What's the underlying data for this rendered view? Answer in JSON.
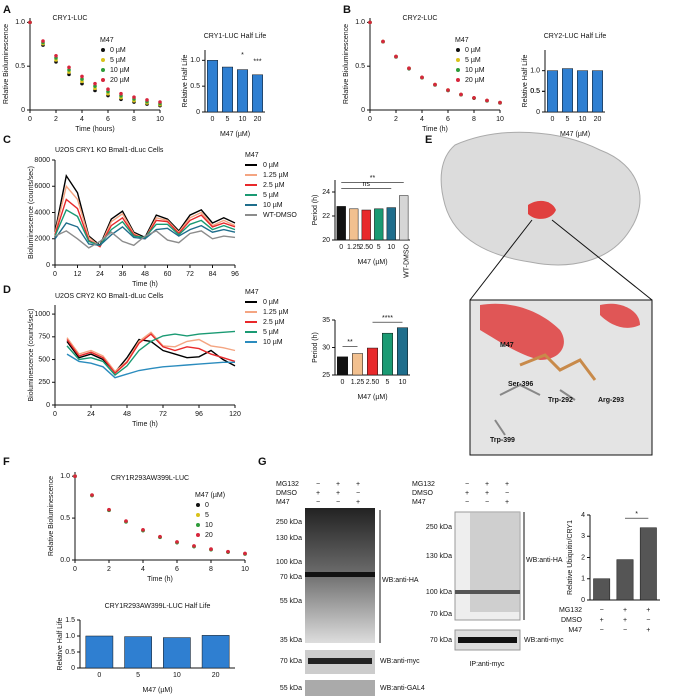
{
  "panel_labels": [
    "A",
    "B",
    "C",
    "D",
    "E",
    "F",
    "G"
  ],
  "chart_data": [
    {
      "type": "line",
      "title": "CRY1-LUC",
      "xlabel": "Time (hours)",
      "ylabel": "Relative Bioluminescence",
      "legend_title": "M47",
      "markers": true,
      "x": [
        0,
        1,
        2,
        3,
        4,
        5,
        6,
        7,
        8,
        9,
        10
      ],
      "xlim": [
        0,
        10
      ],
      "xticks": [
        0,
        2,
        4,
        6,
        8,
        10
      ],
      "ylim": [
        0,
        1.05
      ],
      "yticks": [
        0,
        0.5,
        {
          "value": 1,
          "label": "1.0"
        }
      ],
      "series": [
        {
          "name": "0 µM",
          "color": "#111111",
          "values": [
            1,
            0.741,
            0.549,
            0.407,
            0.301,
            0.223,
            0.165,
            0.122,
            0.091,
            0.067,
            0.05
          ]
        },
        {
          "name": "5 µM",
          "color": "#d9c21a",
          "values": [
            1,
            0.756,
            0.571,
            0.432,
            0.326,
            0.247,
            0.186,
            0.141,
            0.106,
            0.08,
            0.061
          ]
        },
        {
          "name": "10 µM",
          "color": "#2e9b3a",
          "values": [
            1,
            0.771,
            0.595,
            0.458,
            0.353,
            0.273,
            0.21,
            0.162,
            0.125,
            0.096,
            0.074
          ]
        },
        {
          "name": "20 µM",
          "color": "#d7263d",
          "values": [
            1,
            0.787,
            0.619,
            0.487,
            0.383,
            0.301,
            0.237,
            0.186,
            0.147,
            0.115,
            0.091
          ]
        }
      ]
    },
    {
      "type": "bar",
      "title": "CRY1-LUC Half Life",
      "xlabel": "M47 (µM)",
      "ylabel": "Relative Half Life",
      "categories": [
        "0",
        "5",
        "10",
        "20"
      ],
      "values": [
        1.0,
        0.87,
        0.82,
        0.72
      ],
      "color": "#2f7fd1",
      "ylim": [
        0,
        1.2
      ],
      "yticks": [
        0,
        0.5,
        {
          "value": 1,
          "label": "1.0"
        }
      ],
      "annotations": [
        "*",
        "***"
      ]
    },
    {
      "type": "line",
      "title": "CRY2-LUC",
      "xlabel": "Time (h)",
      "ylabel": "Relative Bioluminescence",
      "legend_title": "M47",
      "markers": true,
      "x": [
        0,
        1,
        2,
        3,
        4,
        5,
        6,
        7,
        8,
        9,
        10
      ],
      "xlim": [
        0,
        10
      ],
      "xticks": [
        0,
        2,
        4,
        6,
        8,
        10
      ],
      "ylim": [
        0,
        1.05
      ],
      "yticks": [
        0,
        0.5,
        {
          "value": 1,
          "label": "1.0"
        }
      ],
      "series": [
        {
          "name": "0 µM",
          "color": "#111111",
          "values": [
            1,
            0.779,
            0.607,
            0.472,
            0.368,
            0.287,
            0.223,
            0.174,
            0.135,
            0.105,
            0.082
          ]
        },
        {
          "name": "5 µM",
          "color": "#d9c21a",
          "values": [
            1,
            0.781,
            0.61,
            0.476,
            0.372,
            0.29,
            0.227,
            0.177,
            0.138,
            0.108,
            0.084
          ]
        },
        {
          "name": "10 µM",
          "color": "#2e9b3a",
          "values": [
            1,
            0.78,
            0.608,
            0.474,
            0.37,
            0.288,
            0.225,
            0.175,
            0.137,
            0.106,
            0.083
          ]
        },
        {
          "name": "20 µM",
          "color": "#d7263d",
          "values": [
            1,
            0.782,
            0.611,
            0.477,
            0.373,
            0.291,
            0.228,
            0.178,
            0.139,
            0.109,
            0.085
          ]
        }
      ]
    },
    {
      "type": "bar",
      "title": "CRY2-LUC Half Life",
      "xlabel": "M47 (µM)",
      "ylabel": "Relative Half Life",
      "categories": [
        "0",
        "5",
        "10",
        "20"
      ],
      "values": [
        1.0,
        1.05,
        1.0,
        1.0
      ],
      "color": "#2f7fd1",
      "ylim": [
        0,
        1.5
      ],
      "yticks": [
        0,
        0.5,
        {
          "value": 1,
          "label": "1.0"
        },
        0.5
      ]
    },
    {
      "type": "line",
      "title": "U2OS CRY1 KO Bmal1-dLuc Cells",
      "xlabel": "Time (h)",
      "ylabel": "Bioluminescence (counts/sec)",
      "legend_title": "M47",
      "markers": false,
      "x": [
        0,
        6,
        12,
        18,
        24,
        30,
        36,
        42,
        48,
        54,
        60,
        66,
        72,
        78,
        84,
        90,
        96
      ],
      "xlim": [
        0,
        96
      ],
      "xticks": [
        0,
        12,
        24,
        36,
        48,
        60,
        72,
        84,
        96
      ],
      "ylim": [
        0,
        8000
      ],
      "yticks": [
        0,
        2000,
        4000,
        6000,
        8000
      ],
      "series": [
        {
          "name": "0 µM",
          "color": "#000000",
          "values": [
            2500,
            6800,
            5500,
            2200,
            1500,
            3500,
            4100,
            2500,
            2100,
            3800,
            3500,
            2600,
            3800,
            4200,
            3200,
            3600,
            3200
          ]
        },
        {
          "name": "1.25 µM",
          "color": "#f4a582",
          "values": [
            2400,
            6000,
            5000,
            2100,
            1400,
            3300,
            3900,
            2400,
            2000,
            3600,
            3400,
            2500,
            3600,
            4000,
            3000,
            3400,
            3000
          ]
        },
        {
          "name": "2.5 µM",
          "color": "#e8292b",
          "values": [
            2300,
            5000,
            4300,
            1900,
            1400,
            3000,
            3600,
            2300,
            2000,
            3400,
            3300,
            2400,
            3400,
            3800,
            2900,
            3200,
            2900
          ]
        },
        {
          "name": "5 µM",
          "color": "#1a9a73",
          "values": [
            2200,
            4200,
            3700,
            1800,
            1500,
            2700,
            3300,
            2200,
            2100,
            3100,
            3100,
            2300,
            3100,
            3400,
            2700,
            3000,
            2700
          ]
        },
        {
          "name": "10 µM",
          "color": "#1f6e8c",
          "values": [
            2000,
            3200,
            2900,
            1600,
            1500,
            2300,
            2900,
            2100,
            2000,
            2700,
            2800,
            2200,
            2700,
            3000,
            2500,
            2700,
            2500
          ]
        },
        {
          "name": "WT-DMSO",
          "color": "#8c8c8c",
          "values": [
            2200,
            2600,
            2000,
            1300,
            1800,
            2500,
            1800,
            1500,
            2200,
            2600,
            1900,
            1700,
            2400,
            2600,
            2000,
            2200,
            2100
          ]
        }
      ]
    },
    {
      "type": "bar",
      "xlabel": "M47 (µM)",
      "ylabel": "Period (h)",
      "categories": [
        "0",
        "1.25",
        "2.50",
        "5",
        "10",
        "WT-DMSO"
      ],
      "values": [
        22.8,
        22.6,
        22.5,
        22.6,
        22.7,
        23.7
      ],
      "colors": [
        "#111111",
        "#f2c08f",
        "#e8292b",
        "#1a9a73",
        "#1f6e8c",
        "#d6d6d6"
      ],
      "ylim": [
        20,
        25
      ],
      "yticks": [
        20,
        22,
        24
      ],
      "annotations": [
        "ns",
        "**"
      ]
    },
    {
      "type": "line",
      "title": "U2OS CRY2 KO Bmal1-dLuc Cells",
      "xlabel": "Time (h)",
      "ylabel": "Bioluminescence (counts/sec)",
      "legend_title": "M47",
      "markers": false,
      "x": [
        8,
        16,
        24,
        32,
        40,
        48,
        56,
        64,
        72,
        80,
        88,
        96,
        104,
        112,
        120
      ],
      "xlim": [
        0,
        120
      ],
      "xticks": [
        0,
        24,
        48,
        72,
        96,
        120
      ],
      "ylim": [
        0,
        1100
      ],
      "yticks": [
        0,
        250,
        500,
        750,
        1000
      ],
      "series": [
        {
          "name": "0 µM",
          "color": "#000000",
          "values": [
            700,
            520,
            560,
            500,
            360,
            520,
            720,
            700,
            600,
            560,
            520,
            530,
            600,
            500,
            430
          ]
        },
        {
          "name": "1.25 µM",
          "color": "#f4a582",
          "values": [
            740,
            560,
            600,
            540,
            370,
            480,
            700,
            800,
            650,
            640,
            700,
            720,
            650,
            630,
            600
          ]
        },
        {
          "name": "2.5 µM",
          "color": "#e8292b",
          "values": [
            720,
            540,
            580,
            520,
            350,
            470,
            680,
            780,
            640,
            600,
            640,
            620,
            560,
            520,
            480
          ]
        },
        {
          "name": "5 µM",
          "color": "#1a9a73",
          "values": [
            650,
            500,
            520,
            480,
            330,
            430,
            600,
            700,
            760,
            780,
            760,
            780,
            790,
            800,
            810
          ]
        },
        {
          "name": "10 µM",
          "color": "#2b8cbe",
          "values": [
            560,
            480,
            460,
            420,
            300,
            340,
            380,
            400,
            420,
            430,
            440,
            450,
            460,
            470,
            470
          ]
        }
      ]
    },
    {
      "type": "bar",
      "xlabel": "M47 (µM)",
      "ylabel": "Period (h)",
      "categories": [
        "0",
        "1.25",
        "2.50",
        "5",
        "10"
      ],
      "values": [
        28.3,
        28.9,
        29.9,
        32.6,
        33.6
      ],
      "colors": [
        "#111111",
        "#f2c08f",
        "#e8292b",
        "#1a9a73",
        "#1f6e8c"
      ],
      "ylim": [
        25,
        35
      ],
      "yticks": [
        25,
        30,
        35
      ],
      "annotations": [
        "**",
        "****"
      ]
    },
    {
      "type": "line",
      "title": "CRY1R293AW399L-LUC",
      "xlabel": "Time (h)",
      "ylabel": "Relative Bioluminescence",
      "legend_title": "M47 (µM)",
      "markers": true,
      "x": [
        0,
        1,
        2,
        3,
        4,
        5,
        6,
        7,
        8,
        9,
        10
      ],
      "xlim": [
        0,
        10
      ],
      "xticks": [
        0,
        2,
        4,
        6,
        8,
        10
      ],
      "ylim": [
        0,
        1.05
      ],
      "yticks": [
        {
          "value": 0,
          "label": "0.0"
        },
        0.5,
        {
          "value": 1,
          "label": "1.0"
        }
      ],
      "series": [
        {
          "name": "0",
          "color": "#111111",
          "values": [
            1,
            0.771,
            0.595,
            0.458,
            0.353,
            0.273,
            0.21,
            0.162,
            0.125,
            0.096,
            0.074
          ]
        },
        {
          "name": "5",
          "color": "#d9c21a",
          "values": [
            1,
            0.773,
            0.598,
            0.461,
            0.356,
            0.276,
            0.213,
            0.165,
            0.127,
            0.098,
            0.076
          ]
        },
        {
          "name": "10",
          "color": "#2e9b3a",
          "values": [
            1,
            0.769,
            0.592,
            0.455,
            0.35,
            0.27,
            0.207,
            0.16,
            0.123,
            0.094,
            0.072
          ]
        },
        {
          "name": "20",
          "color": "#d7263d",
          "values": [
            1,
            0.775,
            0.601,
            0.465,
            0.36,
            0.279,
            0.216,
            0.168,
            0.13,
            0.1,
            0.078
          ]
        }
      ]
    },
    {
      "type": "bar",
      "title": "CRY1R293AW399L-LUC Half Life",
      "xlabel": "M47 (µM)",
      "ylabel": "Relative Half Life",
      "categories": [
        "0",
        "5",
        "10",
        "20"
      ],
      "values": [
        1.0,
        0.98,
        0.95,
        1.02
      ],
      "color": "#2f7fd1",
      "ylim": [
        0,
        1.5
      ],
      "yticks": [
        0,
        0.5,
        {
          "value": 1,
          "label": "1.0"
        },
        {
          "value": 1.5,
          "label": "1.5"
        }
      ]
    },
    {
      "type": "bar",
      "ylabel": "Relative Ubiquitin/CRY1",
      "categories": [
        null,
        null,
        null
      ],
      "values": [
        1.0,
        1.9,
        3.4
      ],
      "color": "#555555",
      "ylim": [
        0,
        4
      ],
      "yticks": [
        0,
        1,
        2,
        3,
        4
      ],
      "annotations": [
        "*"
      ],
      "conditions": [
        {
          "name": "MG132",
          "signs": [
            "−",
            "+",
            "+"
          ]
        },
        {
          "name": "DMSO",
          "signs": [
            "+",
            "+",
            "−"
          ]
        },
        {
          "name": "M47",
          "signs": [
            "−",
            "−",
            "+"
          ]
        }
      ]
    }
  ],
  "structure": {
    "labels": [
      "M47",
      "Ser-396",
      "Trp-292",
      "Arg-293",
      "Trp-399"
    ]
  },
  "blots": {
    "left": {
      "treatments": [
        {
          "name": "MG132",
          "signs": [
            "−",
            "+",
            "+"
          ]
        },
        {
          "name": "DMSO",
          "signs": [
            "+",
            "+",
            "−"
          ]
        },
        {
          "name": "M47",
          "signs": [
            "−",
            "−",
            "+"
          ]
        }
      ],
      "markers": [
        "250 kDa",
        "130 kDa",
        "100 kDa",
        "70 kDa",
        "55 kDa",
        "35 kDa"
      ],
      "main": "WB:anti-HA",
      "myc_marker": "70 kDa",
      "myc": "WB:anti-myc",
      "gal_marker": "55 kDa",
      "gal": "WB:anti-GAL4"
    },
    "right": {
      "treatments": [
        {
          "name": "MG132",
          "signs": [
            "−",
            "+",
            "+"
          ]
        },
        {
          "name": "DMSO",
          "signs": [
            "+",
            "+",
            "−"
          ]
        },
        {
          "name": "M47",
          "signs": [
            "−",
            "−",
            "+"
          ]
        }
      ],
      "markers": [
        "250 kDa",
        "130 kDa",
        "100 kDa",
        "70 kDa"
      ],
      "main": "WB:anti-HA",
      "myc_marker": "70 kDa",
      "myc": "WB:anti-myc",
      "ip": "IP:anti-myc"
    }
  }
}
